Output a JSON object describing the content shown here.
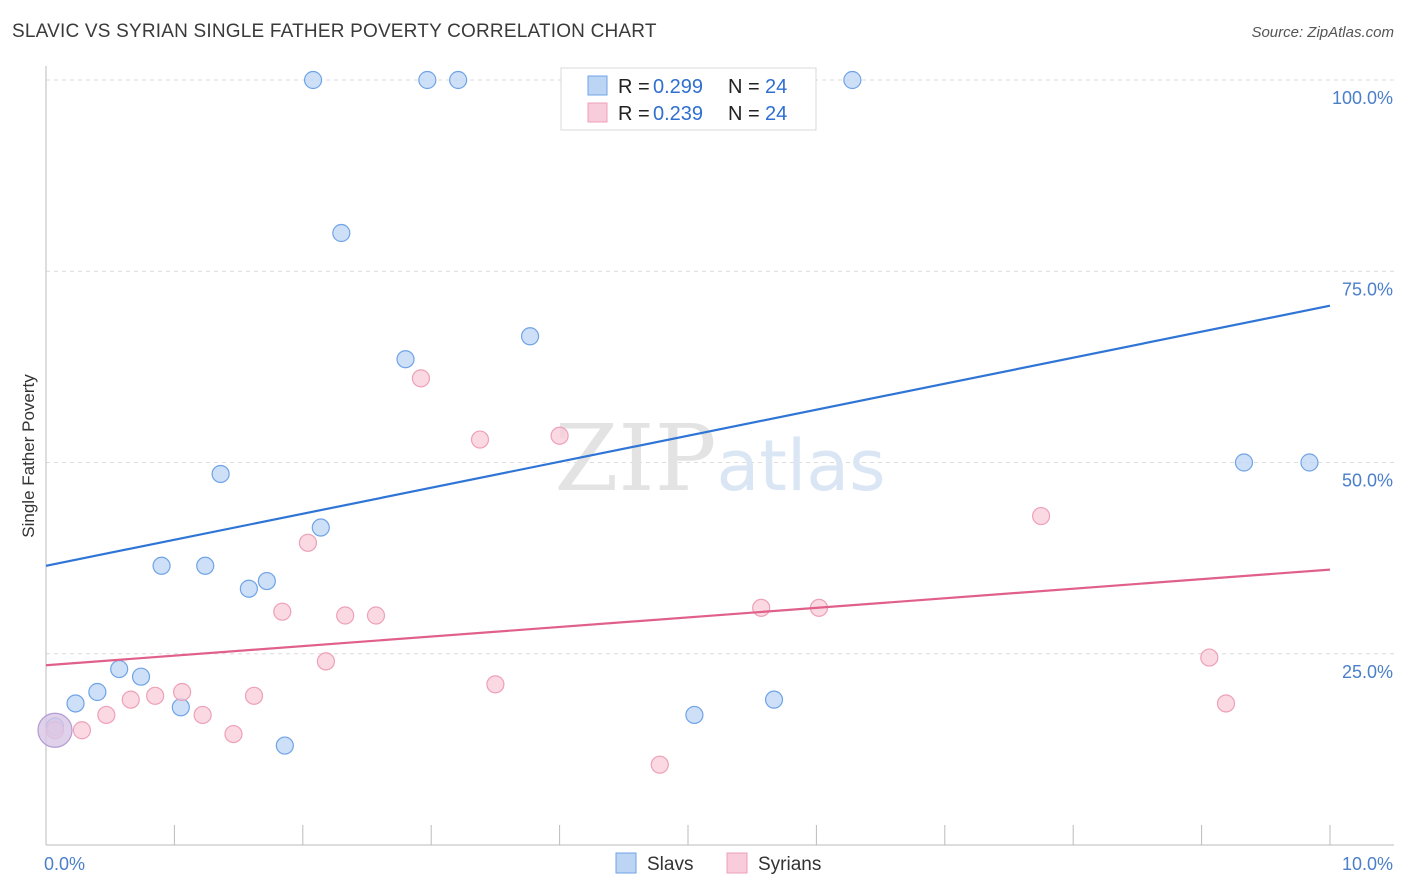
{
  "chart_data": {
    "type": "scatter",
    "title": "SLAVIC VS SYRIAN SINGLE FATHER POVERTY CORRELATION CHART",
    "source": "Source: ZipAtlas.com",
    "xlabel": "",
    "ylabel": "Single Father Poverty",
    "xlim": [
      0,
      10
    ],
    "ylim": [
      0,
      100
    ],
    "x_tick_labels": [
      "0.0%",
      "10.0%"
    ],
    "y_ticks": [
      100,
      75,
      50,
      25
    ],
    "y_tick_labels": [
      "100.0%",
      "75.0%",
      "50.0%",
      "25.0%"
    ],
    "watermark": "ZIPatlas",
    "legend": [
      {
        "name": "Slavs",
        "r_label": "R = ",
        "r": "0.299",
        "n_label": "N = ",
        "n": "24"
      },
      {
        "name": "Syrians",
        "r_label": "R = ",
        "r": "0.239",
        "n_label": "N = ",
        "n": "24"
      }
    ],
    "series": [
      {
        "name": "Slavs",
        "color": "#6fa3e6",
        "fill": "#bcd5f5",
        "line_color": "#2f75d6",
        "trend": {
          "x": [
            0,
            10
          ],
          "y": [
            36.5,
            70.5
          ]
        },
        "points": [
          {
            "x": 0.07,
            "y": 15.5
          },
          {
            "x": 0.23,
            "y": 18.5
          },
          {
            "x": 0.4,
            "y": 20.0
          },
          {
            "x": 0.57,
            "y": 23.0
          },
          {
            "x": 0.74,
            "y": 22.0
          },
          {
            "x": 0.9,
            "y": 36.5
          },
          {
            "x": 1.05,
            "y": 18.0
          },
          {
            "x": 1.24,
            "y": 36.5
          },
          {
            "x": 1.36,
            "y": 48.5
          },
          {
            "x": 1.58,
            "y": 33.5
          },
          {
            "x": 1.72,
            "y": 34.5
          },
          {
            "x": 1.86,
            "y": 13.0
          },
          {
            "x": 2.08,
            "y": 100.0
          },
          {
            "x": 2.14,
            "y": 41.5
          },
          {
            "x": 2.3,
            "y": 80.0
          },
          {
            "x": 2.8,
            "y": 63.5
          },
          {
            "x": 2.97,
            "y": 100.0
          },
          {
            "x": 3.21,
            "y": 100.0
          },
          {
            "x": 3.77,
            "y": 66.5
          },
          {
            "x": 5.05,
            "y": 17.0
          },
          {
            "x": 5.67,
            "y": 19.0
          },
          {
            "x": 6.28,
            "y": 100.0
          },
          {
            "x": 9.33,
            "y": 50.0
          },
          {
            "x": 9.84,
            "y": 50.0
          }
        ]
      },
      {
        "name": "Syrians",
        "color": "#eea0b8",
        "fill": "#f8ccda",
        "line_color": "#e0608a",
        "trend": {
          "x": [
            0,
            10
          ],
          "y": [
            23.5,
            36.0
          ]
        },
        "points": [
          {
            "x": 0.07,
            "y": 15.0
          },
          {
            "x": 0.28,
            "y": 15.0
          },
          {
            "x": 0.47,
            "y": 17.0
          },
          {
            "x": 0.66,
            "y": 19.0
          },
          {
            "x": 0.85,
            "y": 19.5
          },
          {
            "x": 1.06,
            "y": 20.0
          },
          {
            "x": 1.22,
            "y": 17.0
          },
          {
            "x": 1.46,
            "y": 14.5
          },
          {
            "x": 1.62,
            "y": 19.5
          },
          {
            "x": 1.84,
            "y": 30.5
          },
          {
            "x": 2.04,
            "y": 39.5
          },
          {
            "x": 2.18,
            "y": 24.0
          },
          {
            "x": 2.33,
            "y": 30.0
          },
          {
            "x": 2.57,
            "y": 30.0
          },
          {
            "x": 2.92,
            "y": 61.0
          },
          {
            "x": 3.38,
            "y": 53.0
          },
          {
            "x": 3.5,
            "y": 21.0
          },
          {
            "x": 4.0,
            "y": 53.5
          },
          {
            "x": 4.78,
            "y": 10.5
          },
          {
            "x": 5.57,
            "y": 31.0
          },
          {
            "x": 6.02,
            "y": 31.0
          },
          {
            "x": 7.75,
            "y": 43.0
          },
          {
            "x": 9.06,
            "y": 24.5
          },
          {
            "x": 9.19,
            "y": 18.5
          }
        ]
      }
    ],
    "highlight": {
      "x": 0.07,
      "y": 15.0
    }
  }
}
